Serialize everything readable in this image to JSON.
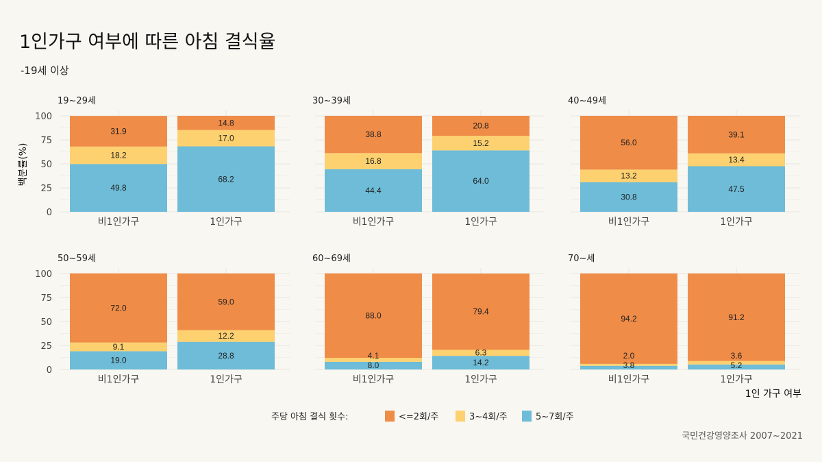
{
  "chart_data": {
    "type": "bar",
    "stacked": true,
    "title": "1인가구 여부에 따른 아침 결식율",
    "subtitle": "-19세 이상",
    "xlabel": "1인 가구 여부",
    "ylabel": "백분률(%)",
    "ylim": [
      0,
      100
    ],
    "yticks": [
      "0",
      "25",
      "50",
      "75",
      "100"
    ],
    "categories": [
      "비1인가구",
      "1인가구"
    ],
    "legend": {
      "title": "주당 아침 결식 횟수:",
      "placement": "bottom",
      "entries": [
        "<=2회/주",
        "3~4회/주",
        "5~7회/주"
      ]
    },
    "colors": [
      "#ef8c47",
      "#fdd170",
      "#6ebcd7"
    ],
    "caption": "국민건강영양조사 2007~2021",
    "panels": [
      {
        "name": "19~29세",
        "series": [
          {
            "name": "<=2회/주",
            "values": [
              31.9,
              14.8
            ]
          },
          {
            "name": "3~4회/주",
            "values": [
              18.2,
              17.0
            ]
          },
          {
            "name": "5~7회/주",
            "values": [
              49.8,
              68.2
            ]
          }
        ]
      },
      {
        "name": "30~39세",
        "series": [
          {
            "name": "<=2회/주",
            "values": [
              38.8,
              20.8
            ]
          },
          {
            "name": "3~4회/주",
            "values": [
              16.8,
              15.2
            ]
          },
          {
            "name": "5~7회/주",
            "values": [
              44.4,
              64.0
            ]
          }
        ]
      },
      {
        "name": "40~49세",
        "series": [
          {
            "name": "<=2회/주",
            "values": [
              56.0,
              39.1
            ]
          },
          {
            "name": "3~4회/주",
            "values": [
              13.2,
              13.4
            ]
          },
          {
            "name": "5~7회/주",
            "values": [
              30.8,
              47.5
            ]
          }
        ]
      },
      {
        "name": "50~59세",
        "series": [
          {
            "name": "<=2회/주",
            "values": [
              72.0,
              59.0
            ]
          },
          {
            "name": "3~4회/주",
            "values": [
              9.1,
              12.2
            ]
          },
          {
            "name": "5~7회/주",
            "values": [
              19.0,
              28.8
            ]
          }
        ]
      },
      {
        "name": "60~69세",
        "series": [
          {
            "name": "<=2회/주",
            "values": [
              88.0,
              79.4
            ]
          },
          {
            "name": "3~4회/주",
            "values": [
              4.1,
              6.3
            ]
          },
          {
            "name": "5~7회/주",
            "values": [
              8.0,
              14.2
            ]
          }
        ]
      },
      {
        "name": "70~세",
        "series": [
          {
            "name": "<=2회/주",
            "values": [
              94.2,
              91.2
            ]
          },
          {
            "name": "3~4회/주",
            "values": [
              2.0,
              3.6
            ]
          },
          {
            "name": "5~7회/주",
            "values": [
              3.8,
              5.2
            ]
          }
        ]
      }
    ]
  }
}
